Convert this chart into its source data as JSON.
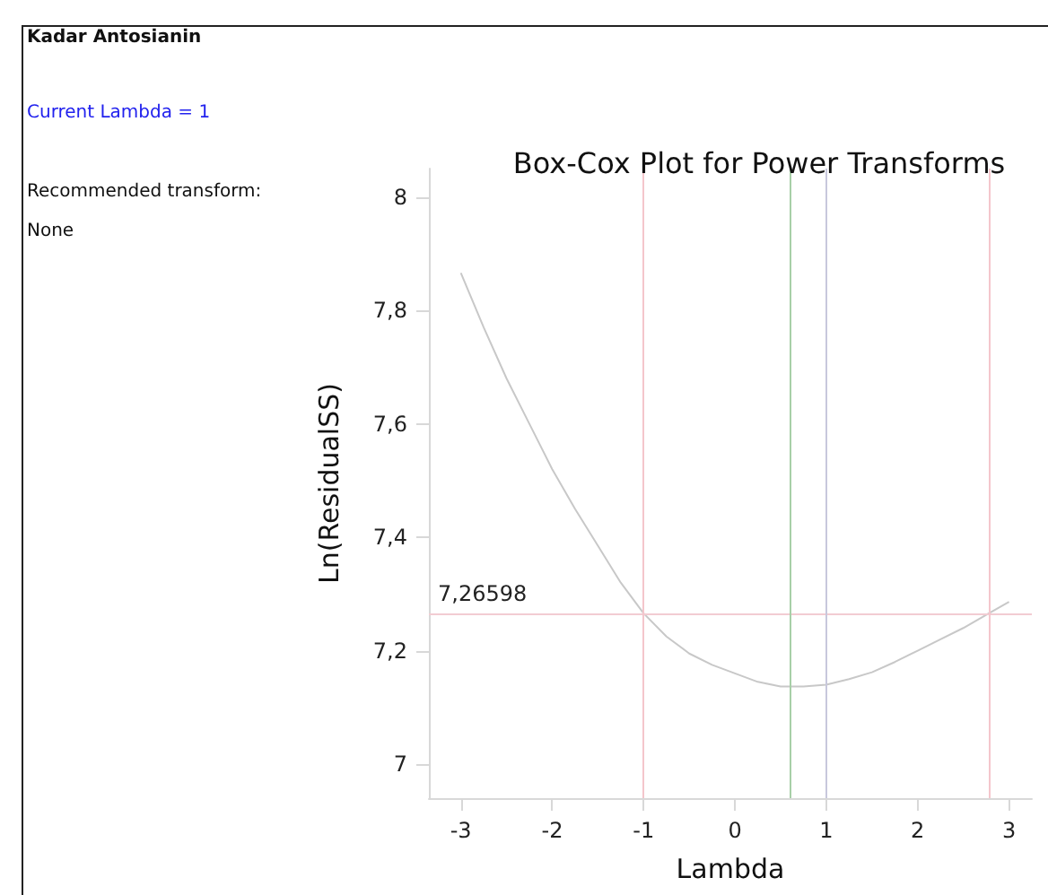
{
  "chart_data": {
    "type": "line",
    "title": "Box-Cox Plot for Power Transforms",
    "xlabel": "Lambda",
    "ylabel": "Ln(ResidualSS)",
    "annotations": [
      "Kadar Antosianin",
      "Current Lambda = 1",
      "Recommended transform:",
      "None"
    ],
    "x": [
      -3,
      -2.75,
      -2.5,
      -2.25,
      -2,
      -1.75,
      -1.5,
      -1.25,
      -1,
      -0.75,
      -0.5,
      -0.25,
      0,
      0.25,
      0.5,
      0.75,
      1,
      1.25,
      1.5,
      1.75,
      2,
      2.25,
      2.5,
      2.78,
      3
    ],
    "series": [
      {
        "color": "#c8c8c8",
        "values": [
          7.866,
          7.77,
          7.68,
          7.6,
          7.52,
          7.45,
          7.385,
          7.32,
          7.266,
          7.225,
          7.195,
          7.175,
          7.16,
          7.145,
          7.137,
          7.137,
          7.14,
          7.15,
          7.162,
          7.18,
          7.2,
          7.22,
          7.24,
          7.266,
          7.286
        ]
      }
    ],
    "xlim": [
      -3.35,
      3.25
    ],
    "xticks": [
      -3,
      -2,
      -1,
      0,
      1,
      2,
      3
    ],
    "ylim": [
      6.94,
      8.05
    ],
    "yticks": [
      7,
      {
        "value": 7.2,
        "label": "7,2"
      },
      {
        "value": 7.4,
        "label": "7,4"
      },
      {
        "value": 7.6,
        "label": "7,6"
      },
      {
        "value": 7.8,
        "label": "7,8"
      },
      8
    ],
    "ref_lines": [
      {
        "axis": "y",
        "value": 7.26598,
        "label": "7,26598",
        "color": "#f2ccd2"
      },
      {
        "axis": "x",
        "value": -1,
        "color": "#f4c6cc"
      },
      {
        "axis": "x",
        "value": 0.6,
        "color": "#a8cfa8"
      },
      {
        "axis": "x",
        "value": 1,
        "color": "#c8c8dc"
      },
      {
        "axis": "x",
        "value": 2.78,
        "color": "#f4c6cc"
      }
    ],
    "grid": false,
    "marker": "none",
    "line_style": "solid"
  }
}
